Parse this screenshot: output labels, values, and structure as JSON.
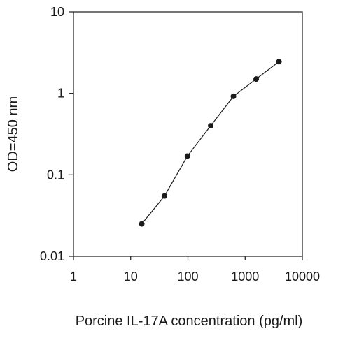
{
  "chart_data": {
    "type": "line",
    "title": "",
    "xlabel": "Porcine IL-17A concentration (pg/ml)",
    "ylabel": "OD=450 nm",
    "x_scale": "log",
    "y_scale": "log",
    "xlim": [
      1,
      10000
    ],
    "ylim": [
      0.01,
      10
    ],
    "x_ticks": [
      1,
      10,
      100,
      1000,
      10000
    ],
    "x_tick_labels": [
      "1",
      "10",
      "100",
      "1000",
      "10000"
    ],
    "y_ticks": [
      0.01,
      0.1,
      1,
      10
    ],
    "y_tick_labels": [
      "0.01",
      "0.1",
      "1",
      "10"
    ],
    "grid": false,
    "legend": "none",
    "series": [
      {
        "x": [
          15.6,
          39,
          98,
          250,
          625,
          1560,
          3900
        ],
        "y": [
          0.025,
          0.055,
          0.17,
          0.4,
          0.92,
          1.5,
          2.45
        ],
        "marker": "circle",
        "color": "#1a1a1a"
      }
    ]
  }
}
